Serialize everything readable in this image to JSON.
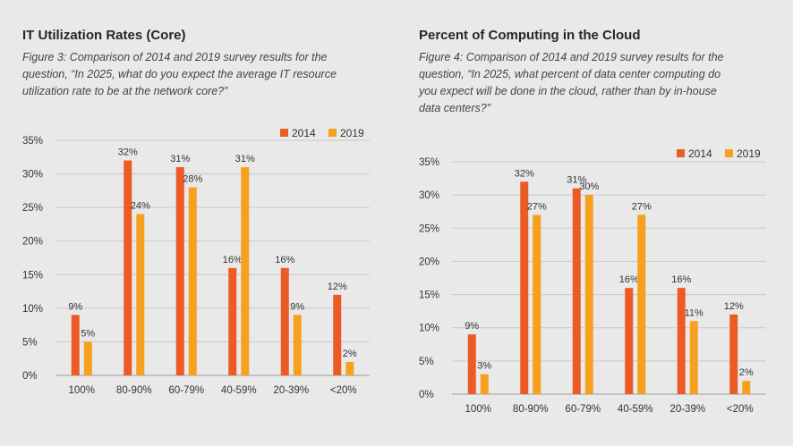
{
  "colors": {
    "s2014": "#ec5b24",
    "s2019": "#f7a01d",
    "grid": "#c9c9c9",
    "axis": "#9a9a9a"
  },
  "left": {
    "title": "IT Utilization Rates (Core)",
    "caption": [
      "Figure 3: Comparison of 2014 and 2019 survey results for the",
      "question, “In 2025, what do you expect the average IT resource",
      "utilization rate to be at the network core?”"
    ]
  },
  "right": {
    "title": "Percent of Computing in the Cloud",
    "caption": [
      "Figure 4: Comparison of 2014 and 2019 survey results for the",
      "question, “In 2025, what percent of data center computing do",
      "you expect will be done in the cloud, rather than by in-house",
      "data centers?”"
    ]
  },
  "chart_data": [
    {
      "type": "bar",
      "title": "IT Utilization Rates (Core)",
      "categories": [
        "100%",
        "80-90%",
        "60-79%",
        "40-59%",
        "20-39%",
        "<20%"
      ],
      "series": [
        {
          "name": "2014",
          "values": [
            9,
            32,
            31,
            16,
            16,
            12
          ],
          "labels": [
            "9%",
            "32%",
            "31%",
            "16%",
            "16%",
            "12%"
          ]
        },
        {
          "name": "2019",
          "values": [
            5,
            24,
            28,
            31,
            9,
            2
          ],
          "labels": [
            "5%",
            "24%",
            "28%",
            "31%",
            "9%",
            "2%"
          ]
        }
      ],
      "yticks": [
        0,
        5,
        10,
        15,
        20,
        25,
        30,
        35
      ],
      "yticklabels": [
        "0%",
        "5%",
        "10%",
        "15%",
        "20%",
        "25%",
        "30%",
        "35%"
      ],
      "ylim": [
        0,
        35
      ],
      "xlabel": "",
      "ylabel": "",
      "legend": "top-right",
      "grid": true
    },
    {
      "type": "bar",
      "title": "Percent of Computing in the Cloud",
      "categories": [
        "100%",
        "80-90%",
        "60-79%",
        "40-59%",
        "20-39%",
        "<20%"
      ],
      "series": [
        {
          "name": "2014",
          "values": [
            9,
            32,
            31,
            16,
            16,
            12
          ],
          "labels": [
            "9%",
            "32%",
            "31%",
            "16%",
            "16%",
            "12%"
          ]
        },
        {
          "name": "2019",
          "values": [
            3,
            27,
            30,
            27,
            11,
            2
          ],
          "labels": [
            "3%",
            "27%",
            "30%",
            "27%",
            "11%",
            "2%"
          ]
        }
      ],
      "yticks": [
        0,
        5,
        10,
        15,
        20,
        25,
        30,
        35
      ],
      "yticklabels": [
        "0%",
        "5%",
        "10%",
        "15%",
        "20%",
        "25%",
        "30%",
        "35%"
      ],
      "ylim": [
        0,
        35
      ],
      "xlabel": "",
      "ylabel": "",
      "legend": "top-right",
      "grid": true
    }
  ]
}
